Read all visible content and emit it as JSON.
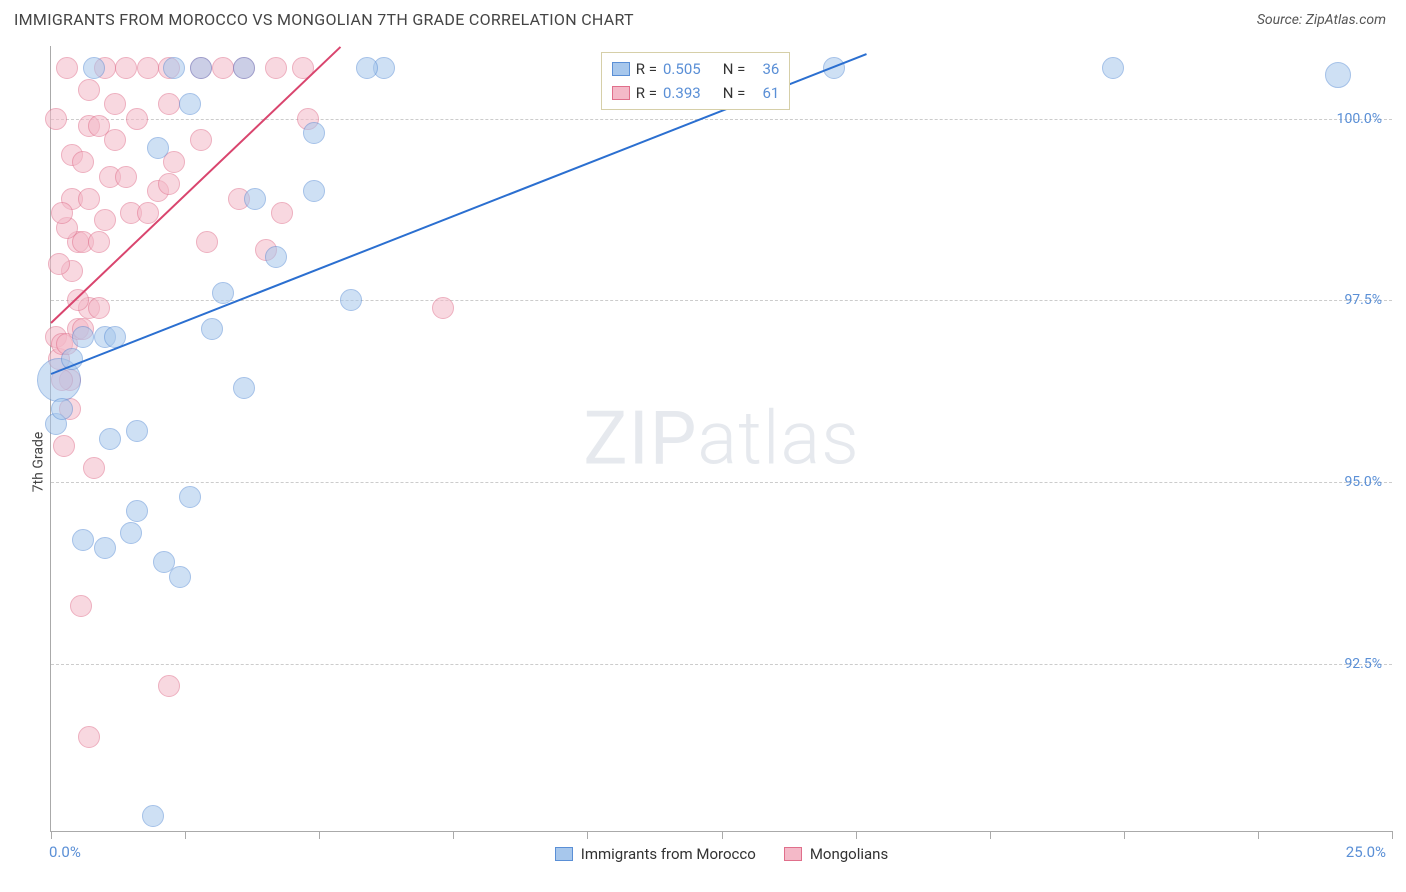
{
  "header": {
    "title": "IMMIGRANTS FROM MOROCCO VS MONGOLIAN 7TH GRADE CORRELATION CHART",
    "source": "Source: ZipAtlas.com"
  },
  "chart": {
    "type": "scatter",
    "ylabel": "7th Grade",
    "xlim": [
      0,
      25
    ],
    "ylim": [
      90.2,
      101.0
    ],
    "xtick_range_labels": {
      "min": "0.0%",
      "max": "25.0%"
    },
    "xticks": [
      0,
      2.5,
      5,
      7.5,
      10,
      12.5,
      15,
      17.5,
      20,
      22.5,
      25
    ],
    "ygrid": [
      {
        "value": 92.5,
        "label": "92.5%"
      },
      {
        "value": 95.0,
        "label": "95.0%"
      },
      {
        "value": 97.5,
        "label": "97.5%"
      },
      {
        "value": 100.0,
        "label": "100.0%"
      }
    ],
    "background_color": "#ffffff",
    "grid_color": "#cccccc",
    "axis_color": "#aaaaaa",
    "tick_label_color": "#5a8fd6",
    "point_radius": 11,
    "point_opacity": 0.55,
    "watermark": {
      "bold": "ZIP",
      "rest": "atlas"
    },
    "series": [
      {
        "key": "morocco",
        "label": "Immigrants from Morocco",
        "fill": "#a7c7ec",
        "stroke": "#5a8fd6",
        "r_label": "R =",
        "r_value": "0.505",
        "n_label": "N =",
        "n_value": "36",
        "trend": {
          "x1": 0.0,
          "y1": 96.5,
          "x2": 15.2,
          "y2": 100.9,
          "color": "#2b6fd0",
          "width": 2
        },
        "points": [
          [
            0.15,
            96.4,
            22
          ],
          [
            0.1,
            95.8
          ],
          [
            0.2,
            96.0
          ],
          [
            0.4,
            96.7
          ],
          [
            0.6,
            97.0
          ],
          [
            1.0,
            97.0
          ],
          [
            1.2,
            97.0
          ],
          [
            1.1,
            95.6
          ],
          [
            1.6,
            95.7
          ],
          [
            1.6,
            94.6
          ],
          [
            2.6,
            94.8
          ],
          [
            1.5,
            94.3
          ],
          [
            2.1,
            93.9
          ],
          [
            2.4,
            93.7
          ],
          [
            1.0,
            94.1
          ],
          [
            0.6,
            94.2
          ],
          [
            1.9,
            90.4
          ],
          [
            3.2,
            97.6
          ],
          [
            3.6,
            96.3
          ],
          [
            3.0,
            97.1
          ],
          [
            3.8,
            98.9
          ],
          [
            5.6,
            97.5
          ],
          [
            4.2,
            98.1
          ],
          [
            4.9,
            99.0
          ],
          [
            4.9,
            99.8
          ],
          [
            2.8,
            100.7
          ],
          [
            2.3,
            100.7
          ],
          [
            2.6,
            100.2
          ],
          [
            3.6,
            100.7
          ],
          [
            6.2,
            100.7
          ],
          [
            5.9,
            100.7
          ],
          [
            0.8,
            100.7
          ],
          [
            14.6,
            100.7
          ],
          [
            19.8,
            100.7
          ],
          [
            24.0,
            100.6,
            13
          ],
          [
            2.0,
            99.6
          ]
        ]
      },
      {
        "key": "mongolians",
        "label": "Mongolians",
        "fill": "#f4b9c8",
        "stroke": "#e06f8b",
        "r_label": "R =",
        "r_value": "0.393",
        "n_label": "N =",
        "n_value": "61",
        "trend": {
          "x1": 0.0,
          "y1": 97.2,
          "x2": 5.4,
          "y2": 101.0,
          "color": "#d9456e",
          "width": 2
        },
        "points": [
          [
            0.1,
            97.0
          ],
          [
            0.15,
            96.7
          ],
          [
            0.2,
            96.9
          ],
          [
            0.3,
            96.9
          ],
          [
            0.35,
            96.4
          ],
          [
            0.35,
            96.0
          ],
          [
            0.2,
            96.4
          ],
          [
            0.5,
            97.1
          ],
          [
            0.6,
            97.1
          ],
          [
            0.7,
            97.4
          ],
          [
            0.9,
            97.4
          ],
          [
            0.5,
            97.5
          ],
          [
            0.4,
            97.9
          ],
          [
            0.5,
            98.3
          ],
          [
            0.6,
            98.3
          ],
          [
            0.9,
            98.3
          ],
          [
            0.3,
            98.5
          ],
          [
            0.4,
            98.9
          ],
          [
            0.7,
            98.9
          ],
          [
            0.15,
            98.0
          ],
          [
            0.2,
            98.7
          ],
          [
            1.0,
            98.6
          ],
          [
            1.1,
            99.2
          ],
          [
            1.4,
            99.2
          ],
          [
            1.5,
            98.7
          ],
          [
            1.8,
            98.7
          ],
          [
            2.0,
            99.0
          ],
          [
            2.2,
            99.1
          ],
          [
            2.3,
            99.4
          ],
          [
            2.8,
            99.7
          ],
          [
            3.5,
            98.9
          ],
          [
            4.3,
            98.7
          ],
          [
            0.4,
            99.5
          ],
          [
            0.6,
            99.4
          ],
          [
            0.7,
            99.9
          ],
          [
            0.9,
            99.9
          ],
          [
            1.2,
            99.7
          ],
          [
            1.6,
            100.0
          ],
          [
            1.2,
            100.2
          ],
          [
            0.7,
            100.4
          ],
          [
            1.0,
            100.7
          ],
          [
            1.4,
            100.7
          ],
          [
            1.8,
            100.7
          ],
          [
            2.2,
            100.7
          ],
          [
            2.2,
            100.2
          ],
          [
            2.8,
            100.7
          ],
          [
            3.2,
            100.7
          ],
          [
            3.6,
            100.7
          ],
          [
            4.2,
            100.7
          ],
          [
            4.7,
            100.7
          ],
          [
            4.8,
            100.0
          ],
          [
            0.3,
            100.7
          ],
          [
            0.1,
            100.0
          ],
          [
            0.25,
            95.5
          ],
          [
            0.8,
            95.2
          ],
          [
            0.55,
            93.3
          ],
          [
            0.7,
            91.5
          ],
          [
            2.2,
            92.2
          ],
          [
            7.3,
            97.4
          ],
          [
            4.0,
            98.2
          ],
          [
            2.9,
            98.3
          ]
        ]
      }
    ],
    "legend_bottom": [
      {
        "label": "Immigrants from Morocco",
        "fill": "#a7c7ec",
        "stroke": "#5a8fd6"
      },
      {
        "label": "Mongolians",
        "fill": "#f4b9c8",
        "stroke": "#e06f8b"
      }
    ]
  }
}
